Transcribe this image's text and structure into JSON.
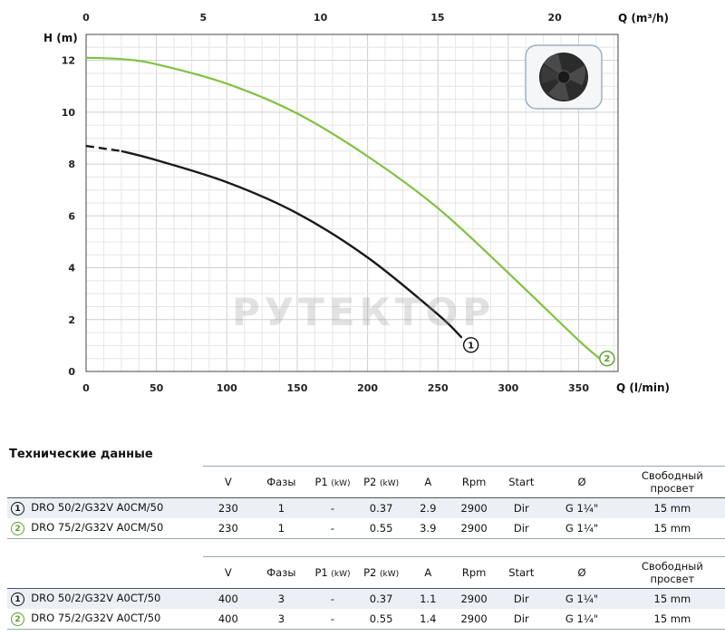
{
  "chart_data": {
    "type": "line",
    "ylabel": "H (m)",
    "xlabel_bottom": "Q (l/min)",
    "xlabel_top": "Q (m³/h)",
    "xlim": [
      0,
      378
    ],
    "ylim": [
      0,
      13
    ],
    "x_top_lim": [
      0,
      22.7
    ],
    "x_ticks": [
      0,
      50,
      100,
      150,
      200,
      250,
      300,
      350
    ],
    "x_top_ticks": [
      0,
      5,
      10,
      15,
      20
    ],
    "y_ticks": [
      0,
      2,
      4,
      6,
      8,
      10,
      12
    ],
    "grid": true,
    "series": [
      {
        "marker": "1",
        "color": "#1a1a1a",
        "dashed_until_x": 25,
        "points": [
          [
            0,
            8.7
          ],
          [
            25,
            8.5
          ],
          [
            50,
            8.15
          ],
          [
            100,
            7.3
          ],
          [
            150,
            6.1
          ],
          [
            200,
            4.4
          ],
          [
            250,
            2.2
          ],
          [
            267,
            1.3
          ]
        ]
      },
      {
        "marker": "2",
        "color": "#7fc241",
        "points": [
          [
            0,
            12.1
          ],
          [
            25,
            12.05
          ],
          [
            50,
            11.85
          ],
          [
            100,
            11.1
          ],
          [
            150,
            9.95
          ],
          [
            200,
            8.3
          ],
          [
            250,
            6.3
          ],
          [
            300,
            3.8
          ],
          [
            350,
            1.2
          ],
          [
            365,
            0.5
          ]
        ]
      }
    ]
  },
  "watermark": "РУТЕКТОР",
  "specs": {
    "title": "Технические данные",
    "tables": [
      {
        "headers": [
          "V",
          "Фазы",
          "P1",
          "P2",
          "A",
          "Rpm",
          "Start",
          "Ø",
          "Свободный просвет"
        ],
        "unit_kw": "(kW)",
        "rows": [
          {
            "num": "1",
            "model": "DRO 50/2/G32V A0CM/50",
            "cells": [
              "230",
              "1",
              "-",
              "0.37",
              "2.9",
              "2900",
              "Dir",
              "G 1¼\"",
              "15 mm"
            ]
          },
          {
            "num": "2",
            "model": "DRO 75/2/G32V A0CM/50",
            "cells": [
              "230",
              "1",
              "-",
              "0.55",
              "3.9",
              "2900",
              "Dir",
              "G 1¼\"",
              "15 mm"
            ]
          }
        ]
      },
      {
        "headers": [
          "V",
          "Фазы",
          "P1",
          "P2",
          "A",
          "Rpm",
          "Start",
          "Ø",
          "Свободный просвет"
        ],
        "unit_kw": "(kW)",
        "rows": [
          {
            "num": "1",
            "model": "DRO 50/2/G32V A0CT/50",
            "cells": [
              "400",
              "3",
              "-",
              "0.37",
              "1.1",
              "2900",
              "Dir",
              "G 1¼\"",
              "15 mm"
            ]
          },
          {
            "num": "2",
            "model": "DRO 75/2/G32V A0CT/50",
            "cells": [
              "400",
              "3",
              "-",
              "0.55",
              "1.4",
              "2900",
              "Dir",
              "G 1¼\"",
              "15 mm"
            ]
          }
        ]
      }
    ]
  }
}
